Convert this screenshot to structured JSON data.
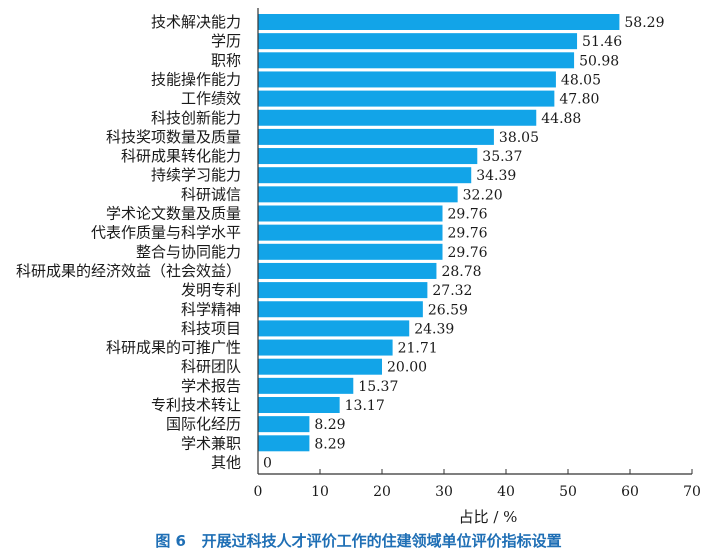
{
  "caption": "图 6   开展过科技人才评价工作的住建领域单位评价指标设置",
  "chart_data": {
    "type": "bar",
    "orientation": "horizontal",
    "categories": [
      "技术解决能力",
      "学历",
      "职称",
      "技能操作能力",
      "工作绩效",
      "科技创新能力",
      "科技奖项数量及质量",
      "科研成果转化能力",
      "持续学习能力",
      "科研诚信",
      "学术论文数量及质量",
      "代表作质量与科学水平",
      "整合与协同能力",
      "科研成果的经济效益（社会效益）",
      "发明专利",
      "科学精神",
      "科技项目",
      "科研成果的可推广性",
      "科研团队",
      "学术报告",
      "专利技术转让",
      "国际化经历",
      "学术兼职",
      "其他"
    ],
    "values": [
      58.29,
      51.46,
      50.98,
      48.05,
      47.8,
      44.88,
      38.05,
      35.37,
      34.39,
      32.2,
      29.76,
      29.76,
      29.76,
      28.78,
      27.32,
      26.59,
      24.39,
      21.71,
      20.0,
      15.37,
      13.17,
      8.29,
      8.29,
      0
    ],
    "value_labels": [
      "58.29",
      "51.46",
      "50.98",
      "48.05",
      "47.80",
      "44.88",
      "38.05",
      "35.37",
      "34.39",
      "32.20",
      "29.76",
      "29.76",
      "29.76",
      "28.78",
      "27.32",
      "26.59",
      "24.39",
      "21.71",
      "20.00",
      "15.37",
      "13.17",
      "8.29",
      "8.29",
      "0"
    ],
    "xlabel": "占比 / %",
    "xlim": [
      0,
      70
    ],
    "xticks": [
      "0",
      "10",
      "20",
      "30",
      "40",
      "50",
      "60",
      "70"
    ],
    "bar_color": "#12a4e8",
    "axis_color": "#333333",
    "grid": false
  }
}
